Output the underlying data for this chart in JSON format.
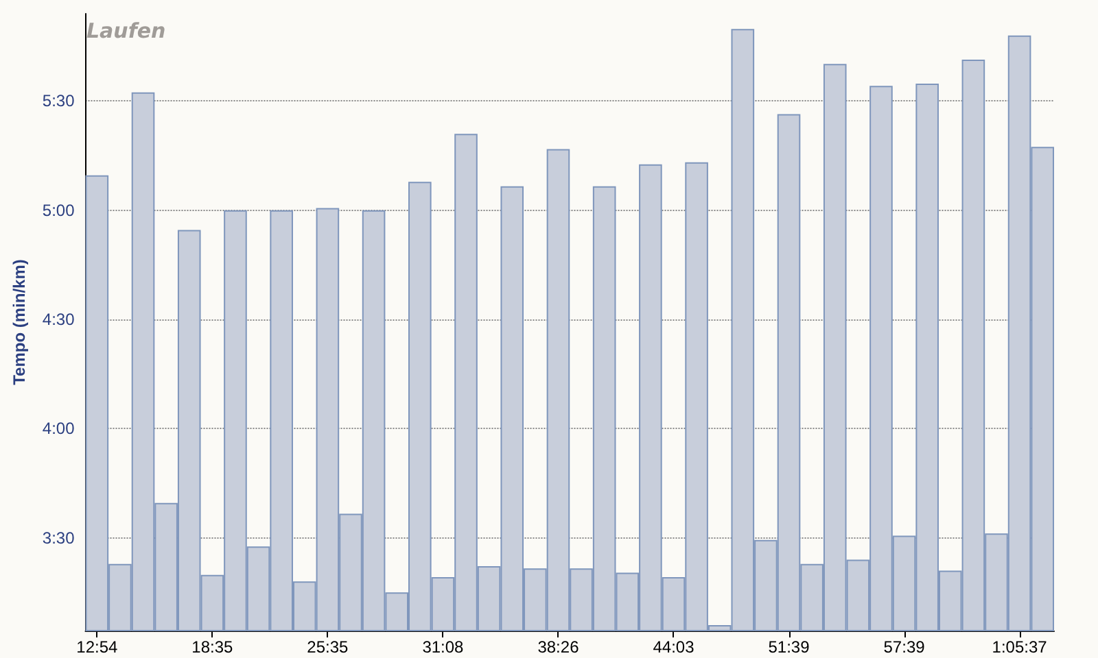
{
  "chart_data": {
    "type": "bar",
    "title": "Laufen",
    "ylabel": "Tempo (min/km)",
    "categories": [
      "12:54",
      null,
      null,
      null,
      null,
      "18:35",
      null,
      null,
      null,
      null,
      "25:35",
      null,
      null,
      null,
      null,
      "31:08",
      null,
      null,
      null,
      null,
      "38:26",
      null,
      null,
      null,
      null,
      "44:03",
      null,
      null,
      null,
      null,
      "51:39",
      null,
      null,
      null,
      null,
      "57:39",
      null,
      null,
      null,
      null,
      "1:05:37",
      null
    ],
    "values": [
      5.16,
      3.38,
      5.54,
      3.66,
      4.91,
      3.33,
      5.0,
      3.46,
      5.0,
      3.3,
      5.01,
      3.61,
      5.0,
      3.25,
      5.13,
      3.32,
      5.35,
      3.37,
      5.11,
      3.36,
      5.28,
      3.36,
      5.11,
      3.34,
      5.21,
      3.32,
      5.22,
      3.1,
      5.83,
      3.49,
      5.44,
      3.38,
      5.67,
      3.4,
      5.57,
      3.51,
      5.58,
      3.35,
      5.69,
      3.52,
      5.8,
      5.29
    ],
    "color": "#c8cedb",
    "ylim": [
      3.075,
      5.9
    ],
    "yticks": [
      {
        "value": 3.5,
        "label": "3:30"
      },
      {
        "value": 4,
        "label": "4:00"
      },
      {
        "value": 4.5,
        "label": "4:30"
      },
      {
        "value": 5,
        "label": "5:00"
      },
      {
        "value": 5.5,
        "label": "5:30"
      }
    ],
    "grid": "y"
  }
}
